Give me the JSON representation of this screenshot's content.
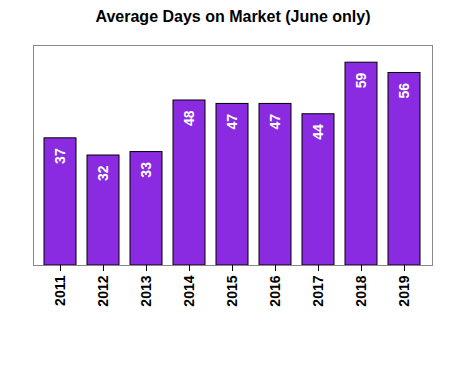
{
  "chart_data": {
    "type": "bar",
    "title": "Average Days on Market (June only)",
    "categories": [
      "2011",
      "2012",
      "2013",
      "2014",
      "2015",
      "2016",
      "2017",
      "2018",
      "2019"
    ],
    "values": [
      37,
      32,
      33,
      48,
      47,
      47,
      44,
      59,
      56
    ],
    "color": "#8a2be2",
    "ylim": [
      0,
      64
    ],
    "yticks": [],
    "data_labels": true,
    "tick_labels": "x",
    "grid": false
  }
}
